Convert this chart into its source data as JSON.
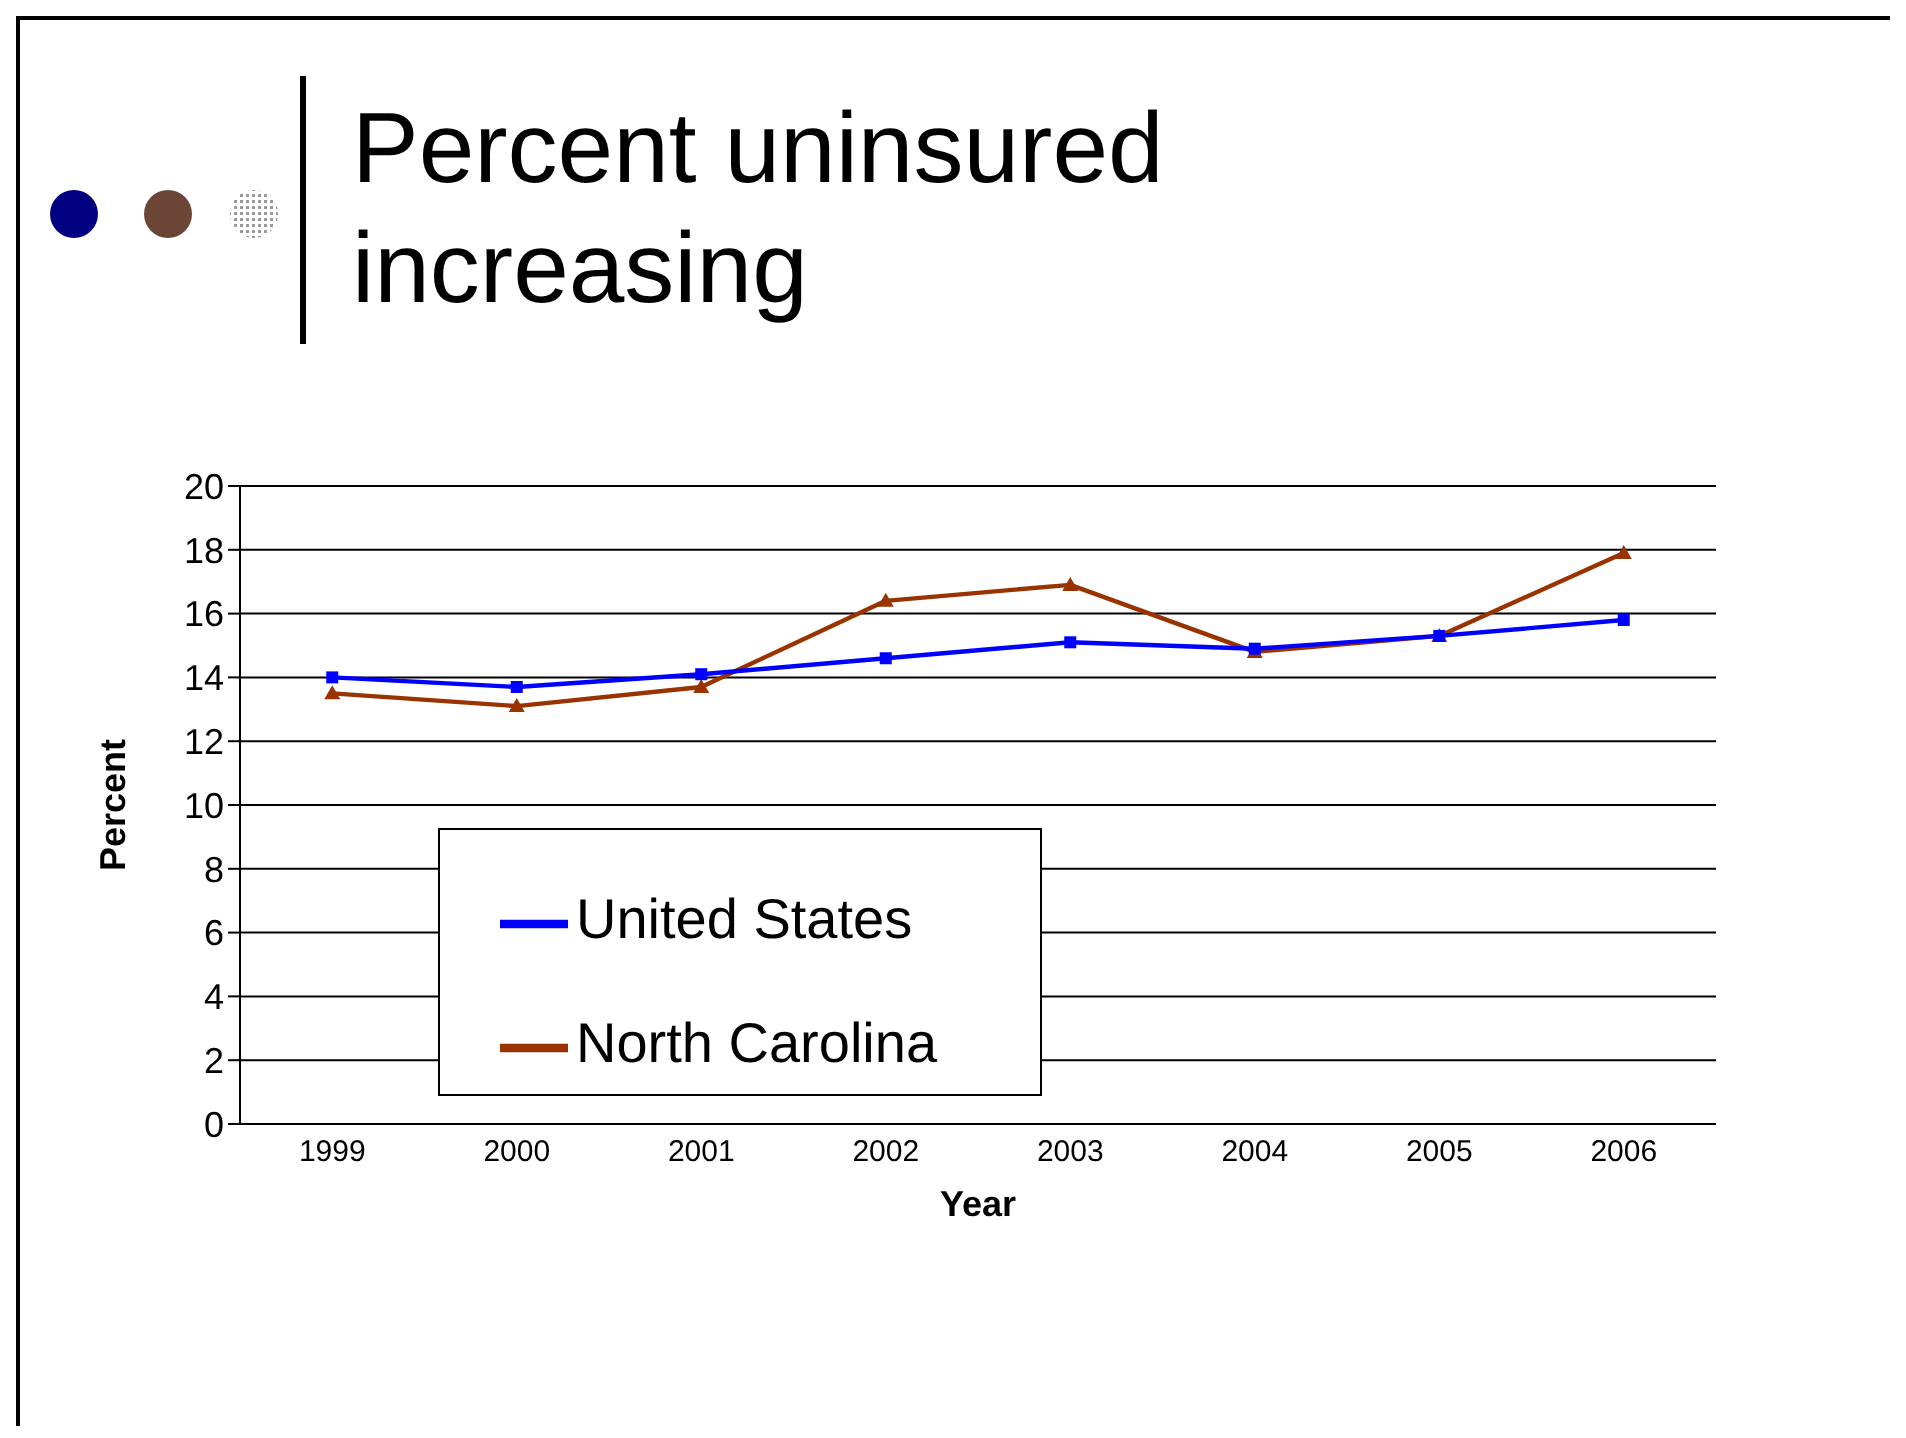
{
  "chart_data": {
    "type": "line",
    "title": "Percent uninsured increasing",
    "xlabel": "Year",
    "ylabel": "Percent",
    "categories": [
      "1999",
      "2000",
      "2001",
      "2002",
      "2003",
      "2004",
      "2005",
      "2006"
    ],
    "series": [
      {
        "name": "United States",
        "color": "#0000ff",
        "marker": "square",
        "values": [
          14.0,
          13.7,
          14.1,
          14.6,
          15.1,
          14.9,
          15.3,
          15.8
        ]
      },
      {
        "name": "North Carolina",
        "color": "#993300",
        "marker": "triangle",
        "values": [
          13.5,
          13.1,
          13.7,
          16.4,
          16.9,
          14.8,
          15.3,
          17.9
        ]
      }
    ],
    "ylim": [
      0,
      20
    ],
    "yticks": [
      0,
      2,
      4,
      6,
      8,
      10,
      12,
      14,
      16,
      18,
      20
    ],
    "grid": "y",
    "legend": "bottom left"
  }
}
